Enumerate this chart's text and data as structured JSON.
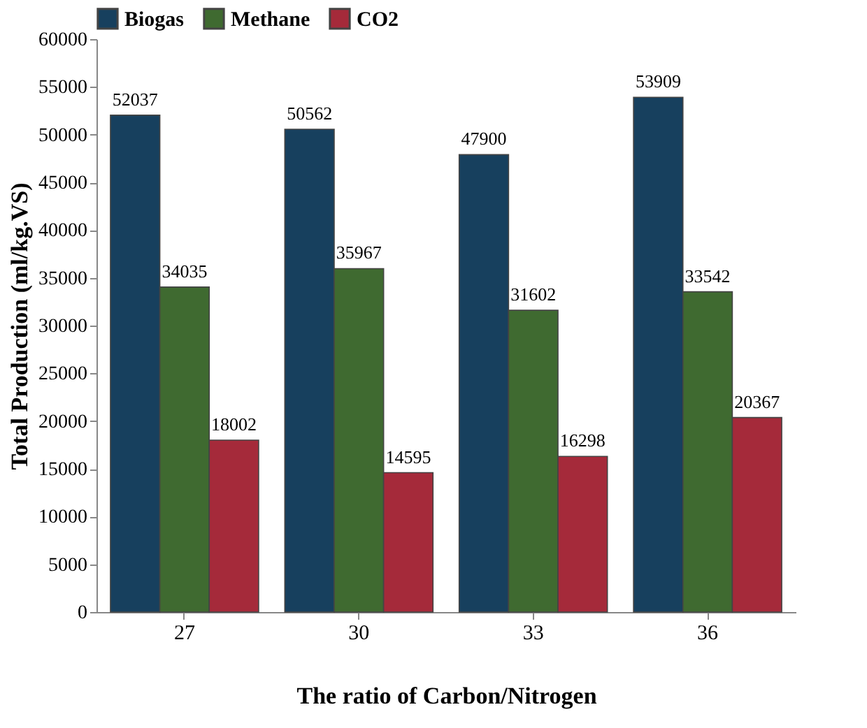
{
  "chart_data": {
    "type": "bar",
    "xlabel": "The ratio of Carbon/Nitrogen",
    "ylabel": "Total Production (ml/kg.VS)",
    "categories": [
      "27",
      "30",
      "33",
      "36"
    ],
    "series": [
      {
        "name": "Biogas",
        "color": "#17405e",
        "values": [
          52037,
          50562,
          47900,
          53909
        ]
      },
      {
        "name": "Methane",
        "color": "#3f6a30",
        "values": [
          34035,
          35967,
          31602,
          33542
        ]
      },
      {
        "name": "CO2",
        "color": "#a52a3a",
        "values": [
          18002,
          14595,
          16298,
          20367
        ]
      }
    ],
    "ylim": [
      0,
      60000
    ],
    "yticks": [
      0,
      5000,
      10000,
      15000,
      20000,
      25000,
      30000,
      35000,
      40000,
      45000,
      50000,
      55000,
      60000
    ],
    "grid": false,
    "legend": "top",
    "data_labels": true
  }
}
